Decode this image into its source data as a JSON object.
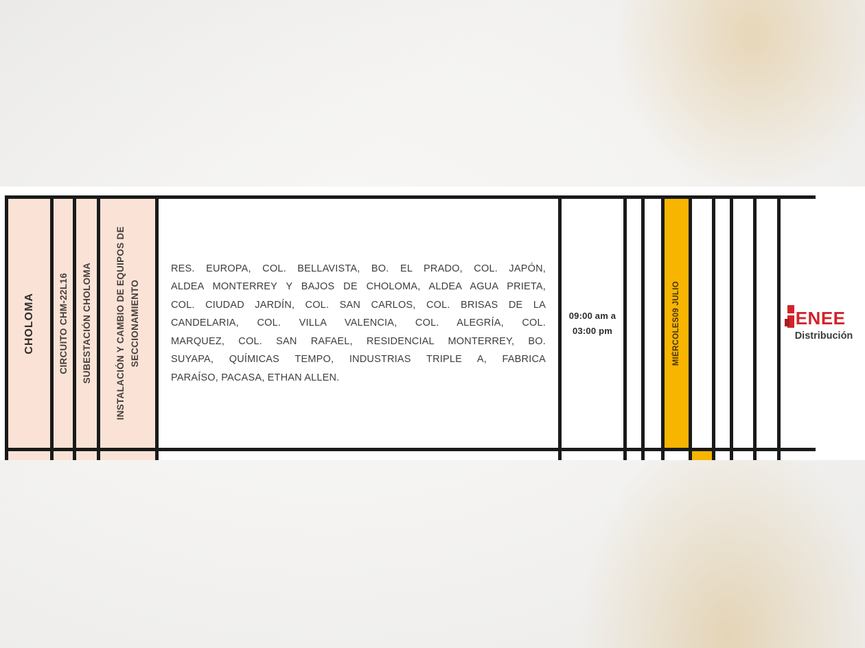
{
  "document": {
    "table": {
      "row1": {
        "municipality": "CHOLOMA",
        "circuit": "CIRCUITO CHM-22L16",
        "substation": "SUBESTACIÓN CHOLOMA",
        "work_type": "INSTALACIÓN Y CAMBIO DE EQUIPOS DE\nSECCIONAMIENTO",
        "affected_areas_lines": [
          "RES. EUROPA, COL. BELLAVISTA, BO. EL PRADO, COL. JAPÓN,",
          "ALDEA MONTERREY Y BAJOS DE CHOLOMA, ALDEA AGUA PRIETA,",
          "COL. CIUDAD JARDÍN, COL. SAN CARLOS, COL. BRISAS DE LA",
          "CANDELARIA, COL. VILLA VALENCIA, COL. ALEGRÍA, COL.",
          "MARQUEZ, COL. SAN RAFAEL, RESIDENCIAL MONTERREY, BO.",
          "SUYAPA, QUÍMICAS TEMPO, INDUSTRIAS TRIPLE A, FABRICA",
          "PARAÍSO, PACASA, ETHAN ALLEN."
        ],
        "time": {
          "line1": "09:00 am a",
          "line2": "03:00 pm"
        },
        "date": "MIÉRCOLES09 JULIO"
      }
    },
    "logo": {
      "name": "ENEE",
      "subtitle": "Distribución"
    }
  },
  "colors": {
    "highlight_yellow": "#F7B500",
    "header_pink": "#FAE3D6",
    "brand_red": "#D2232A",
    "border_black": "#1A1A1A"
  }
}
